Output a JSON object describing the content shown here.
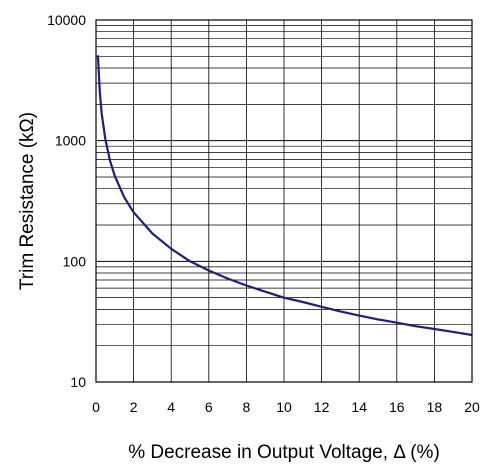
{
  "chart_data": {
    "type": "line",
    "title": "",
    "xlabel": "% Decrease in Output Voltage, Δ (%)",
    "ylabel": "Trim Resistance (kΩ)",
    "xlim": [
      0,
      20
    ],
    "ylim": [
      10,
      10000
    ],
    "yscale": "log",
    "grid": true,
    "x_ticks": [
      "0",
      "2",
      "4",
      "6",
      "8",
      "10",
      "12",
      "14",
      "16",
      "18",
      "20"
    ],
    "y_ticks": [
      "10",
      "100",
      "1000",
      "10000"
    ],
    "series": [
      {
        "color": "#1f1f7a",
        "x": [
          0.1,
          0.2,
          0.3,
          0.5,
          0.75,
          1,
          1.5,
          2,
          3,
          4,
          5,
          6,
          7,
          8,
          9,
          10,
          11,
          12,
          13,
          14,
          15,
          16,
          17,
          18,
          19,
          20
        ],
        "y": [
          5100,
          2550,
          1700,
          1020,
          680,
          510,
          340,
          255,
          170,
          127,
          100,
          84,
          72,
          63,
          56,
          50,
          46,
          42,
          38.5,
          35.5,
          33,
          31,
          29,
          27.5,
          26,
          24.5
        ]
      }
    ]
  }
}
